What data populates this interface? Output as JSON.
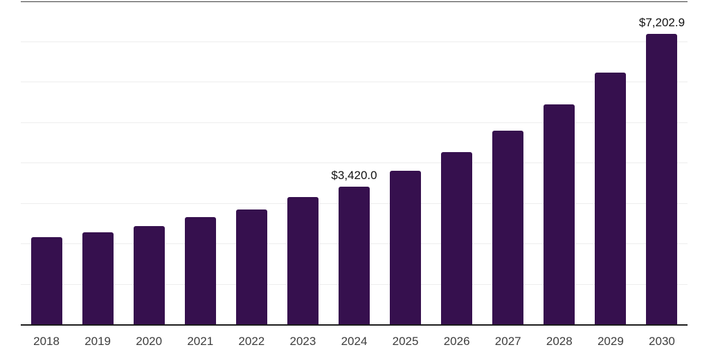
{
  "chart": {
    "bar_color": "#36104E",
    "grid_color": "#ededed",
    "axis_line_color": "#1c1c1c",
    "top_border_color": "#3c3c3c",
    "tick_label_color": "#3d3d3d",
    "value_label_color": "#111111",
    "background_color": "#ffffff"
  },
  "chart_data": {
    "type": "bar",
    "title": "",
    "xlabel": "",
    "ylabel": "",
    "categories": [
      "2018",
      "2019",
      "2020",
      "2021",
      "2022",
      "2023",
      "2024",
      "2025",
      "2026",
      "2027",
      "2028",
      "2029",
      "2030"
    ],
    "values": [
      2170,
      2285,
      2445,
      2660,
      2860,
      3170,
      3420.0,
      3810,
      4280,
      4810,
      5450,
      6240,
      7202.9
    ],
    "data_labels": {
      "2024": "$3,420.0",
      "2030": "$7,202.9"
    },
    "ylim": [
      0,
      8000
    ],
    "grid": "horizontal gridlines every 1000, unlabeled (no y-axis tick labels)",
    "legend": "none",
    "notes": "single series; only 2024 and 2030 bars carry value labels; values for other years estimated from gridlines"
  }
}
